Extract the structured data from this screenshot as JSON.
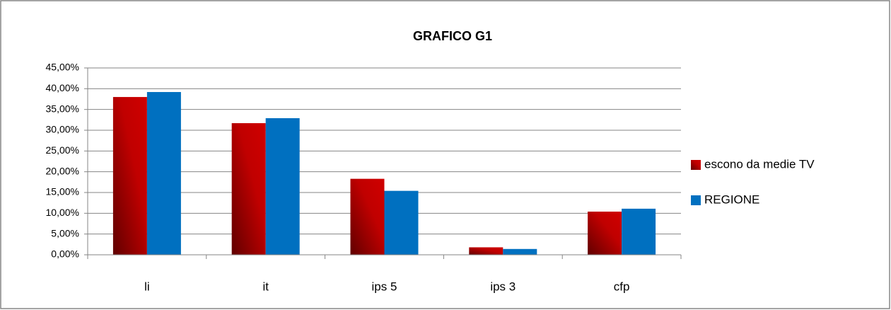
{
  "chart_data": {
    "type": "bar",
    "title": "GRAFICO G1",
    "categories": [
      "li",
      "it",
      "ips 5",
      "ips 3",
      "cfp"
    ],
    "series": [
      {
        "name": "escono da medie TV",
        "color": "#c00000",
        "values": [
          38.0,
          31.7,
          18.3,
          1.8,
          10.4
        ]
      },
      {
        "name": "REGIONE",
        "color": "#0070c0",
        "values": [
          39.2,
          32.9,
          15.4,
          1.4,
          11.1
        ]
      }
    ],
    "ylim": [
      0,
      45
    ],
    "yticks": [
      {
        "value": 0,
        "label": "0,00%"
      },
      {
        "value": 5,
        "label": "5,00%"
      },
      {
        "value": 10,
        "label": "10,00%"
      },
      {
        "value": 15,
        "label": "15,00%"
      },
      {
        "value": 20,
        "label": "20,00%"
      },
      {
        "value": 25,
        "label": "25,00%"
      },
      {
        "value": 30,
        "label": "30,00%"
      },
      {
        "value": 35,
        "label": "35,00%"
      },
      {
        "value": 40,
        "label": "40,00%"
      },
      {
        "value": 45,
        "label": "45,00%"
      }
    ],
    "grid": true,
    "legend": "right"
  }
}
